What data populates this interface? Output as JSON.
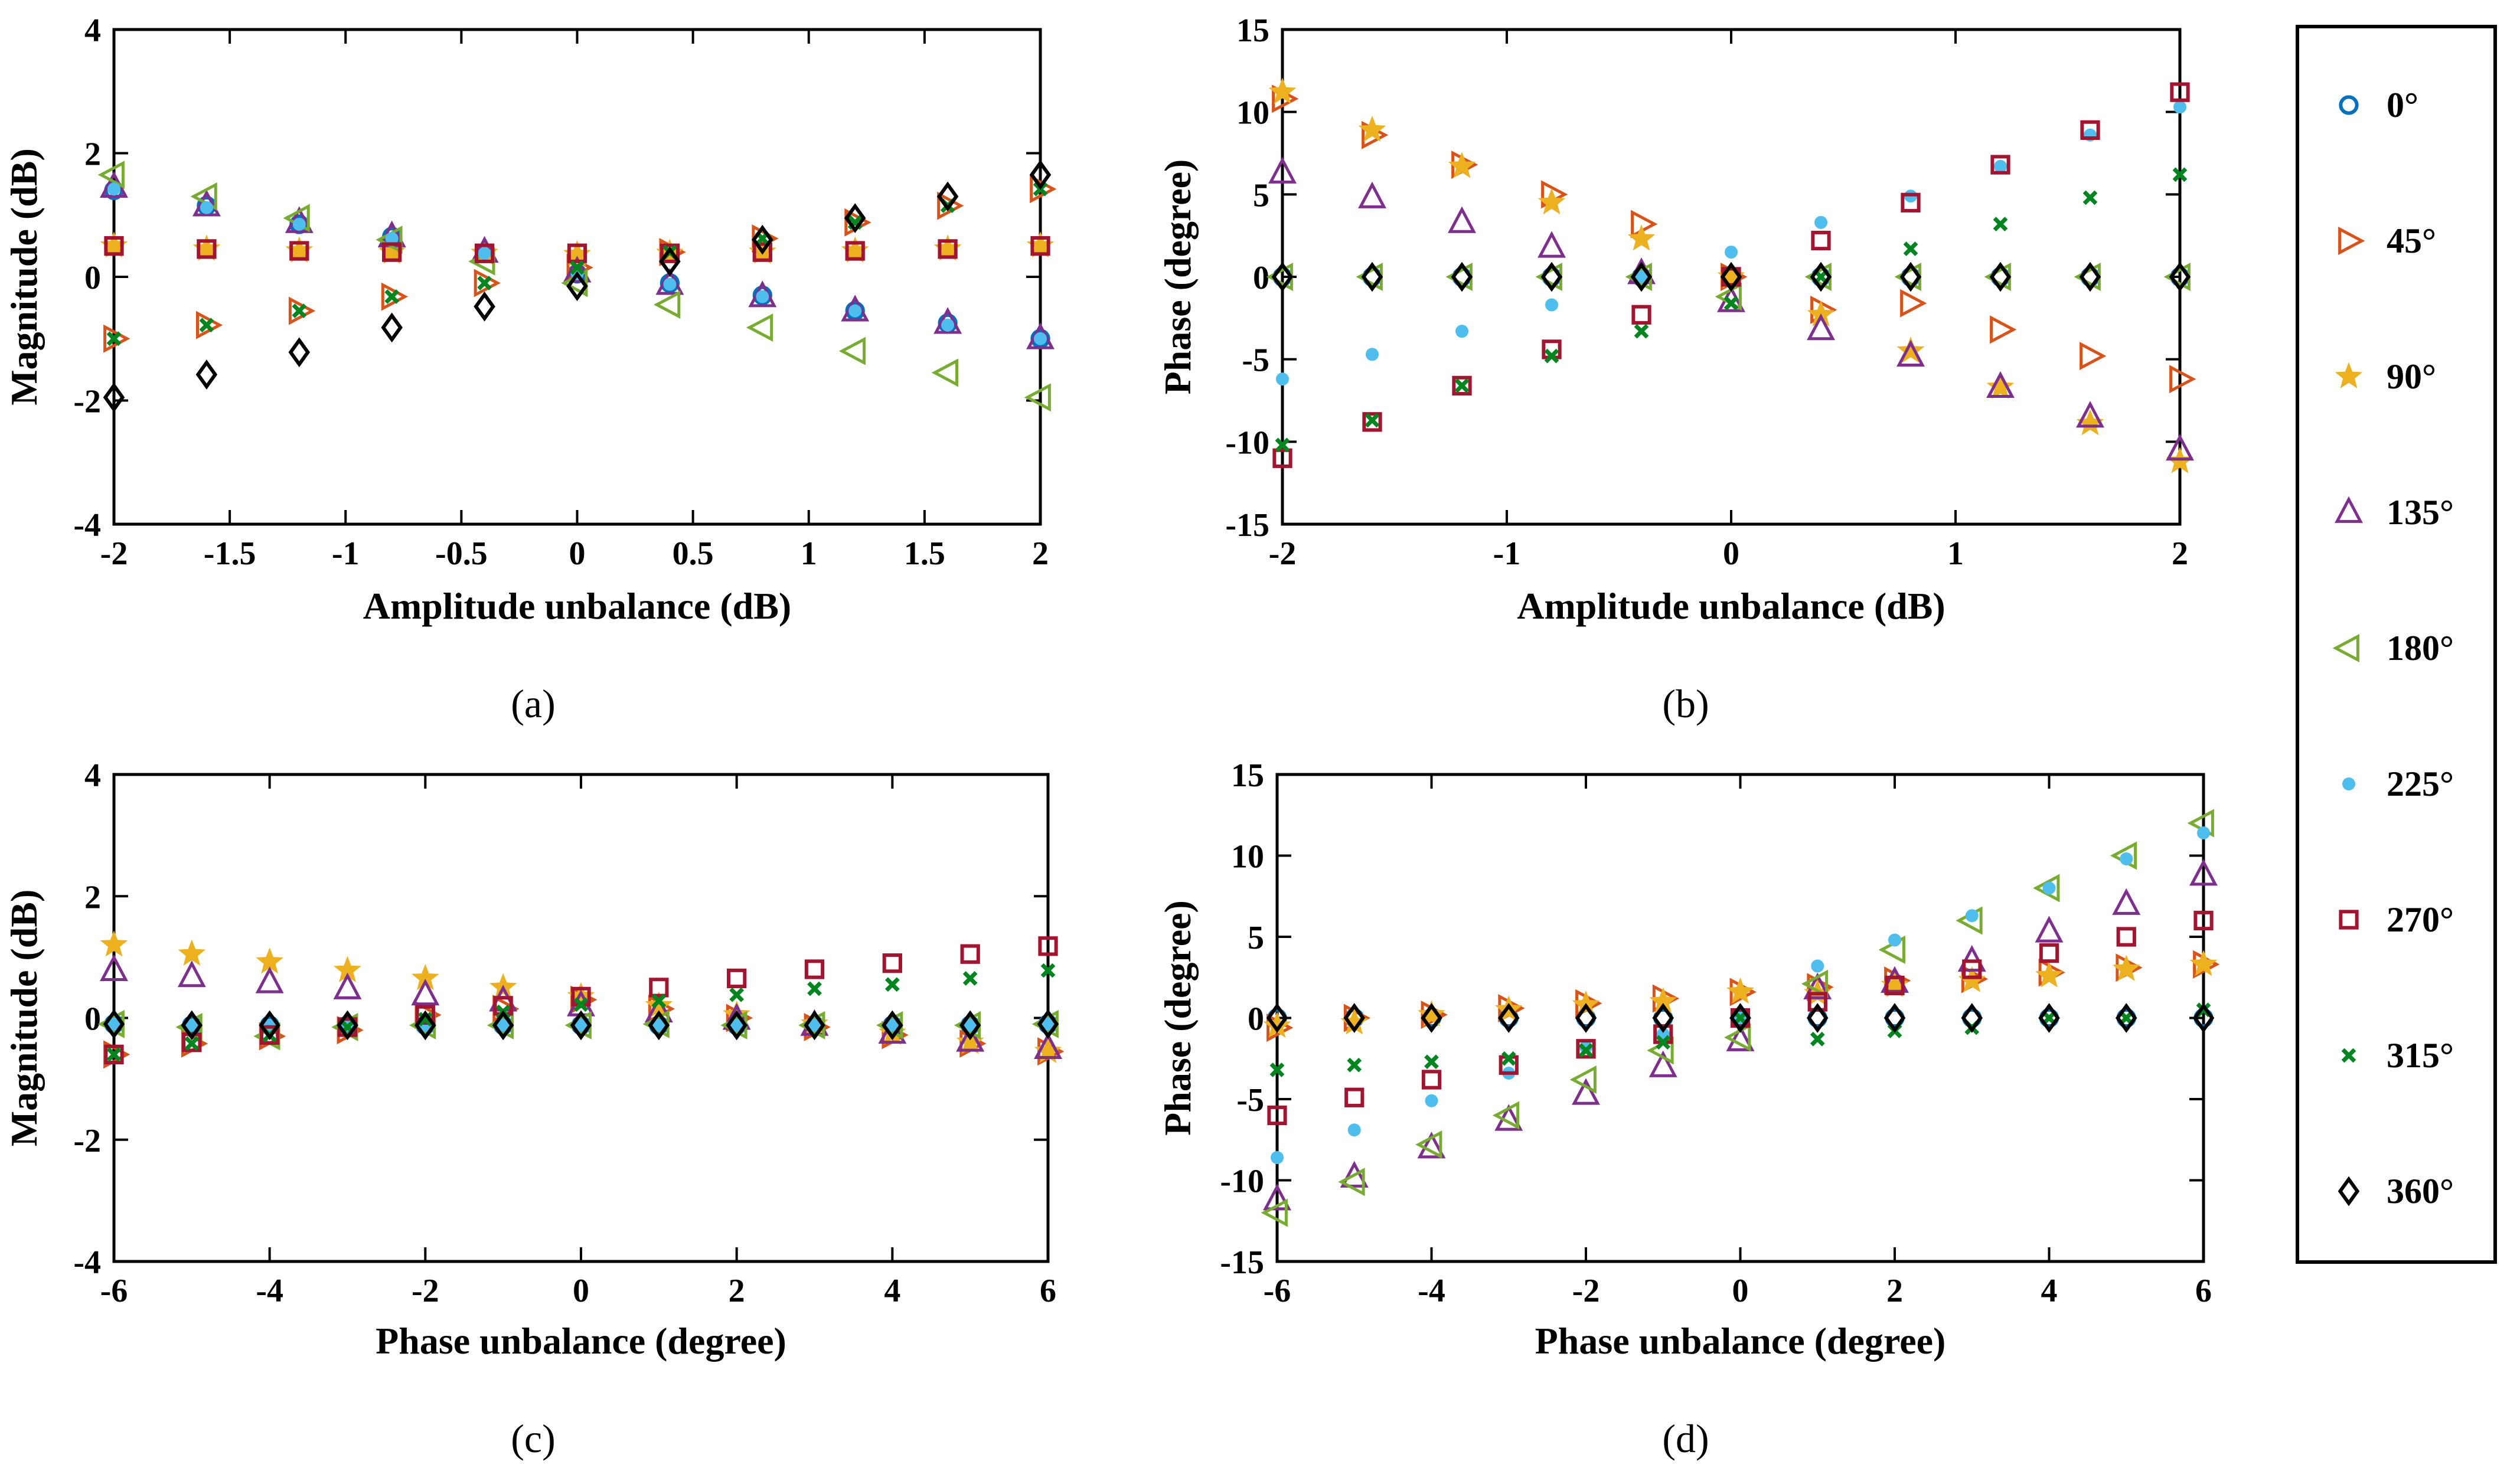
{
  "colors": {
    "0": "#0072BD",
    "45": "#D95319",
    "90": "#EDB120",
    "135": "#7E2F8E",
    "180": "#77AC30",
    "225": "#4DBEEE",
    "270": "#A2142F",
    "315": "#00861E",
    "360": "#000000"
  },
  "legend": {
    "entries": [
      {
        "key": "0",
        "label": "0°",
        "marker": "circle"
      },
      {
        "key": "45",
        "label": "45°",
        "marker": "triangle-right"
      },
      {
        "key": "90",
        "label": "90°",
        "marker": "star"
      },
      {
        "key": "135",
        "label": "135°",
        "marker": "triangle-up"
      },
      {
        "key": "180",
        "label": "180°",
        "marker": "triangle-left"
      },
      {
        "key": "225",
        "label": "225°",
        "marker": "dot"
      },
      {
        "key": "270",
        "label": "270°",
        "marker": "square"
      },
      {
        "key": "315",
        "label": "315°",
        "marker": "x"
      },
      {
        "key": "360",
        "label": "360°",
        "marker": "diamond"
      }
    ]
  },
  "chart_data": [
    {
      "id": "a",
      "type": "scatter",
      "caption": "(a)",
      "title": "",
      "xlabel": "Amplitude unbalance (dB)",
      "ylabel": "Magnitude (dB)",
      "xlim": [
        -2,
        2
      ],
      "ylim": [
        -4,
        4
      ],
      "xticks": [
        -2,
        -1.5,
        -1,
        -0.5,
        0,
        0.5,
        1,
        1.5,
        2
      ],
      "xtick_labels": [
        "-2",
        "-1.5",
        "-1",
        "-0.5",
        "0",
        "0.5",
        "1",
        "1.5",
        "2"
      ],
      "yticks": [
        -4,
        -2,
        0,
        2,
        4
      ],
      "ytick_labels": [
        "-4",
        "-2",
        "0",
        "2",
        "4"
      ],
      "x": [
        -2,
        -1.6,
        -1.2,
        -0.8,
        -0.4,
        0,
        0.4,
        0.8,
        1.2,
        1.6,
        2
      ],
      "series": [
        {
          "key": "0",
          "values": [
            1.4,
            1.15,
            0.85,
            0.65,
            0.38,
            0.05,
            -0.1,
            -0.3,
            -0.55,
            -0.75,
            -1.0
          ]
        },
        {
          "key": "45",
          "values": [
            -1.0,
            -0.78,
            -0.55,
            -0.32,
            -0.1,
            0.15,
            0.4,
            0.62,
            0.88,
            1.15,
            1.42
          ]
        },
        {
          "key": "90",
          "values": [
            0.5,
            0.45,
            0.42,
            0.4,
            0.38,
            0.36,
            0.38,
            0.4,
            0.42,
            0.45,
            0.5
          ]
        },
        {
          "key": "135",
          "values": [
            1.45,
            1.15,
            0.88,
            0.65,
            0.4,
            0.08,
            -0.12,
            -0.32,
            -0.55,
            -0.75,
            -1.0
          ]
        },
        {
          "key": "180",
          "values": [
            1.65,
            1.3,
            0.95,
            0.6,
            0.25,
            -0.1,
            -0.45,
            -0.82,
            -1.2,
            -1.55,
            -1.95
          ]
        },
        {
          "key": "225",
          "values": [
            1.42,
            1.12,
            0.85,
            0.62,
            0.38,
            0.05,
            -0.12,
            -0.32,
            -0.55,
            -0.78,
            -1.0
          ]
        },
        {
          "key": "270",
          "values": [
            0.5,
            0.45,
            0.42,
            0.4,
            0.38,
            0.38,
            0.38,
            0.4,
            0.42,
            0.45,
            0.5
          ]
        },
        {
          "key": "315",
          "values": [
            -1.0,
            -0.78,
            -0.55,
            -0.32,
            -0.1,
            0.15,
            0.4,
            0.62,
            0.88,
            1.15,
            1.42
          ]
        },
        {
          "key": "360",
          "values": [
            -1.95,
            -1.58,
            -1.22,
            -0.82,
            -0.48,
            -0.15,
            0.25,
            0.6,
            0.95,
            1.3,
            1.65
          ]
        }
      ]
    },
    {
      "id": "b",
      "type": "scatter",
      "caption": "(b)",
      "title": "",
      "xlabel": "Amplitude unbalance (dB)",
      "ylabel": "Phase (degree)",
      "xlim": [
        -2,
        2
      ],
      "ylim": [
        -15,
        15
      ],
      "xticks": [
        -2,
        -1,
        0,
        1,
        2
      ],
      "xtick_labels": [
        "-2",
        "-1",
        "0",
        "1",
        "2"
      ],
      "yticks": [
        -15,
        -10,
        -5,
        0,
        5,
        10,
        15
      ],
      "ytick_labels": [
        "-15",
        "-10",
        "-5",
        "0",
        "5",
        "10",
        "15"
      ],
      "x": [
        -2,
        -1.6,
        -1.2,
        -0.8,
        -0.4,
        0,
        0.4,
        0.8,
        1.2,
        1.6,
        2
      ],
      "series": [
        {
          "key": "0",
          "values": [
            0,
            0,
            0,
            0,
            0,
            0,
            0,
            0,
            0,
            0,
            0
          ]
        },
        {
          "key": "45",
          "values": [
            10.8,
            8.6,
            6.8,
            5.0,
            3.2,
            0,
            -2.0,
            -1.6,
            -3.2,
            -4.8,
            -6.2
          ]
        },
        {
          "key": "90",
          "values": [
            11.2,
            8.9,
            6.7,
            4.5,
            2.3,
            0,
            -2.3,
            -4.5,
            -6.7,
            -8.9,
            -11.2
          ]
        },
        {
          "key": "135",
          "values": [
            6.3,
            4.8,
            3.3,
            1.8,
            0.2,
            -1.5,
            -3.2,
            -4.8,
            -6.7,
            -8.5,
            -10.5
          ]
        },
        {
          "key": "180",
          "values": [
            0,
            0,
            0,
            0,
            0,
            -1.2,
            0,
            0,
            0,
            0,
            0
          ]
        },
        {
          "key": "225",
          "values": [
            -6.2,
            -4.7,
            -3.3,
            -1.7,
            0,
            1.5,
            3.3,
            4.9,
            6.7,
            8.6,
            10.3
          ]
        },
        {
          "key": "270",
          "values": [
            -11.0,
            -8.8,
            -6.6,
            -4.4,
            -2.3,
            0,
            2.2,
            4.5,
            6.8,
            8.9,
            11.2
          ]
        },
        {
          "key": "315",
          "values": [
            -10.2,
            -8.7,
            -6.6,
            -4.8,
            -3.3,
            -1.6,
            0,
            1.7,
            3.2,
            4.8,
            6.2
          ]
        },
        {
          "key": "360",
          "values": [
            0,
            0,
            0,
            0,
            0,
            0,
            0,
            0,
            0,
            0,
            0
          ]
        }
      ]
    },
    {
      "id": "c",
      "type": "scatter",
      "caption": "(c)",
      "title": "",
      "xlabel": "Phase unbalance (degree)",
      "ylabel": "Magnitude (dB)",
      "xlim": [
        -6,
        6
      ],
      "ylim": [
        -4,
        4
      ],
      "xticks": [
        -6,
        -4,
        -2,
        0,
        2,
        4,
        6
      ],
      "xtick_labels": [
        "-6",
        "-4",
        "-2",
        "0",
        "2",
        "4",
        "6"
      ],
      "yticks": [
        -4,
        -2,
        0,
        2,
        4
      ],
      "ytick_labels": [
        "-4",
        "-2",
        "0",
        "2",
        "4"
      ],
      "x": [
        -6,
        -5,
        -4,
        -3,
        -2,
        -1,
        0,
        1,
        2,
        3,
        4,
        5,
        6
      ],
      "series": [
        {
          "key": "0",
          "values": [
            -0.1,
            -0.12,
            -0.12,
            -0.12,
            -0.12,
            -0.12,
            -0.12,
            -0.12,
            -0.12,
            -0.12,
            -0.12,
            -0.12,
            -0.1
          ]
        },
        {
          "key": "45",
          "values": [
            -0.6,
            -0.42,
            -0.3,
            -0.2,
            0.05,
            0.15,
            0.3,
            0.15,
            0.0,
            -0.15,
            -0.28,
            -0.42,
            -0.55
          ]
        },
        {
          "key": "90",
          "values": [
            1.2,
            1.05,
            0.92,
            0.78,
            0.65,
            0.5,
            0.35,
            0.2,
            0.05,
            -0.1,
            -0.25,
            -0.4,
            -0.55
          ]
        },
        {
          "key": "135",
          "values": [
            0.78,
            0.68,
            0.58,
            0.48,
            0.38,
            0.28,
            0.2,
            0.1,
            -0.02,
            -0.12,
            -0.25,
            -0.38,
            -0.5
          ]
        },
        {
          "key": "180",
          "values": [
            -0.1,
            -0.15,
            -0.3,
            -0.15,
            -0.12,
            -0.12,
            -0.12,
            -0.1,
            -0.12,
            -0.12,
            -0.12,
            -0.12,
            -0.1
          ]
        },
        {
          "key": "225",
          "values": [
            -0.1,
            -0.12,
            -0.12,
            -0.12,
            -0.12,
            -0.12,
            -0.12,
            -0.12,
            -0.12,
            -0.12,
            -0.12,
            -0.12,
            -0.1
          ]
        },
        {
          "key": "270",
          "values": [
            -0.6,
            -0.4,
            -0.28,
            -0.15,
            0.05,
            0.2,
            0.35,
            0.5,
            0.65,
            0.8,
            0.9,
            1.05,
            1.18
          ]
        },
        {
          "key": "315",
          "values": [
            -0.6,
            -0.42,
            -0.28,
            -0.15,
            -0.02,
            0.1,
            0.22,
            0.28,
            0.38,
            0.48,
            0.55,
            0.65,
            0.78
          ]
        },
        {
          "key": "360",
          "values": [
            -0.1,
            -0.12,
            -0.12,
            -0.12,
            -0.12,
            -0.12,
            -0.12,
            -0.12,
            -0.12,
            -0.12,
            -0.12,
            -0.12,
            -0.1
          ]
        }
      ]
    },
    {
      "id": "d",
      "type": "scatter",
      "caption": "(d)",
      "title": "",
      "xlabel": "Phase unbalance (degree)",
      "ylabel": "Phase (degree)",
      "xlim": [
        -6,
        6
      ],
      "ylim": [
        -15,
        15
      ],
      "xticks": [
        -6,
        -4,
        -2,
        0,
        2,
        4,
        6
      ],
      "xtick_labels": [
        "-6",
        "-4",
        "-2",
        "0",
        "2",
        "4",
        "6"
      ],
      "yticks": [
        -15,
        -10,
        -5,
        0,
        5,
        10,
        15
      ],
      "ytick_labels": [
        "-15",
        "-10",
        "-5",
        "0",
        "5",
        "10",
        "15"
      ],
      "x": [
        -6,
        -5,
        -4,
        -3,
        -2,
        -1,
        0,
        1,
        2,
        3,
        4,
        5,
        6
      ],
      "series": [
        {
          "key": "0",
          "values": [
            0,
            0,
            0,
            0,
            0,
            0,
            0,
            0,
            0,
            0,
            0,
            0,
            0
          ]
        },
        {
          "key": "45",
          "values": [
            -0.6,
            0,
            0.2,
            0.6,
            0.9,
            1.2,
            1.6,
            1.9,
            2.3,
            2.4,
            2.8,
            3.1,
            3.3
          ]
        },
        {
          "key": "90",
          "values": [
            -0.5,
            -0.3,
            0.2,
            0.5,
            0.8,
            1.0,
            1.6,
            1.5,
            2.0,
            2.3,
            2.6,
            3.0,
            3.3
          ]
        },
        {
          "key": "135",
          "values": [
            -11.2,
            -9.8,
            -8.0,
            -6.3,
            -4.7,
            -3.0,
            -1.4,
            1.8,
            2.2,
            3.5,
            5.3,
            7.0,
            8.8
          ]
        },
        {
          "key": "180",
          "values": [
            -12.0,
            -10.1,
            -7.8,
            -6.0,
            -3.8,
            -2.0,
            -1.2,
            2.1,
            4.2,
            6.0,
            8.0,
            10.0,
            12.0
          ]
        },
        {
          "key": "225",
          "values": [
            -8.6,
            -6.9,
            -5.1,
            -3.4,
            -1.8,
            -1.0,
            0,
            3.2,
            4.8,
            6.3,
            8.0,
            9.8,
            11.4
          ]
        },
        {
          "key": "270",
          "values": [
            -6.0,
            -4.9,
            -3.8,
            -2.9,
            -1.9,
            -1.0,
            0,
            1.0,
            2.0,
            3.0,
            4.0,
            5.0,
            6.0
          ]
        },
        {
          "key": "315",
          "values": [
            -3.2,
            -2.9,
            -2.7,
            -2.5,
            -2.0,
            -1.5,
            0,
            -1.3,
            -0.8,
            -0.6,
            0,
            0,
            0.5
          ]
        },
        {
          "key": "360",
          "values": [
            0,
            0,
            0,
            0,
            0,
            0,
            0,
            0,
            0,
            0,
            0,
            0,
            0
          ]
        }
      ]
    }
  ]
}
